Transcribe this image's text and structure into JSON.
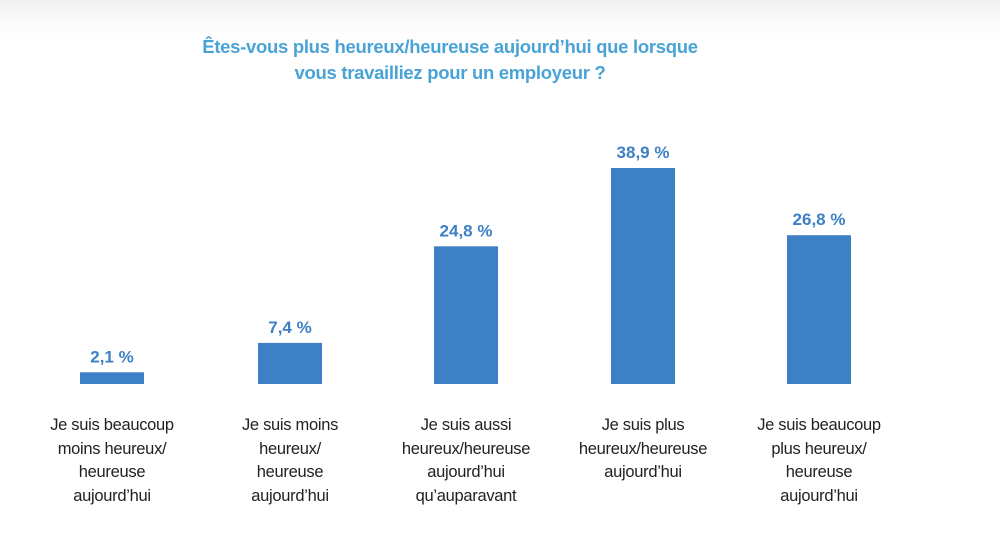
{
  "chart_data": {
    "type": "bar",
    "title_lines": [
      "Êtes-vous plus heureux/heureuse aujourd’hui que lorsque",
      "vous travailliez pour un employeur ?"
    ],
    "categories": [
      [
        "Je suis beaucoup",
        "moins heureux/",
        "heureuse",
        "aujourd’hui"
      ],
      [
        "Je suis moins",
        "heureux/",
        "heureuse",
        "aujourd’hui"
      ],
      [
        "Je suis aussi",
        "heureux/heureuse",
        "aujourd’hui",
        "qu’auparavant"
      ],
      [
        "Je suis plus",
        "heureux/heureuse",
        "aujourd’hui"
      ],
      [
        "Je suis beaucoup",
        "plus heureux/",
        "heureuse",
        "aujourd’hui"
      ]
    ],
    "values": [
      2.1,
      7.4,
      24.8,
      38.9,
      26.8
    ],
    "value_labels": [
      "2,1 %",
      "7,4 %",
      "24,8 %",
      "38,9 %",
      "26,8 %"
    ],
    "unit": "%",
    "ylim": [
      0,
      40
    ],
    "grid": false,
    "legend": "none",
    "colors": {
      "bar": "#3d80c5",
      "value_label": "#3d80c5",
      "title": "#4aa3d6",
      "category_label": "#222222"
    }
  }
}
